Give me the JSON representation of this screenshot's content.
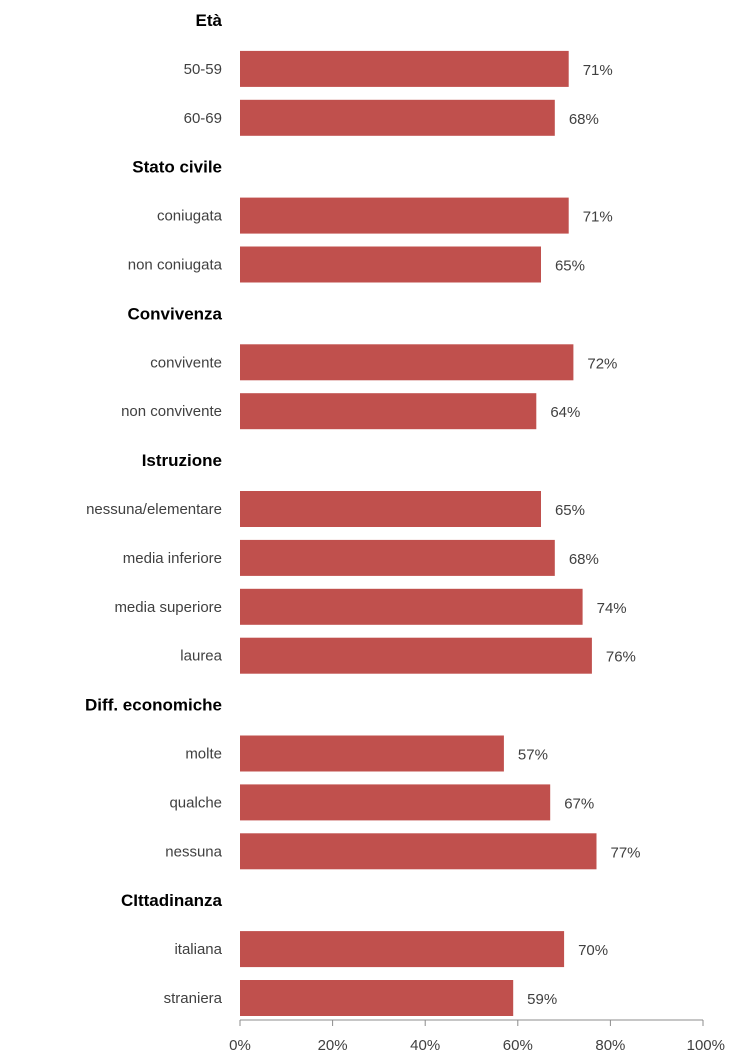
{
  "chart_data": {
    "type": "bar",
    "orientation": "horizontal",
    "bar_color": "#c0504d",
    "axis_color": "#8c8c8c",
    "xlim": [
      0,
      100
    ],
    "x_ticks": [
      "0%",
      "20%",
      "40%",
      "60%",
      "80%",
      "100%"
    ],
    "groups": [
      {
        "title": "Età",
        "items": [
          {
            "category": "50-59",
            "value": 71,
            "label": "71%"
          },
          {
            "category": "60-69",
            "value": 68,
            "label": "68%"
          }
        ]
      },
      {
        "title": "Stato civile",
        "items": [
          {
            "category": "coniugata",
            "value": 71,
            "label": "71%"
          },
          {
            "category": "non coniugata",
            "value": 65,
            "label": "65%"
          }
        ]
      },
      {
        "title": "Convivenza",
        "items": [
          {
            "category": "convivente",
            "value": 72,
            "label": "72%"
          },
          {
            "category": "non convivente",
            "value": 64,
            "label": "64%"
          }
        ]
      },
      {
        "title": "Istruzione",
        "items": [
          {
            "category": "nessuna/elementare",
            "value": 65,
            "label": "65%"
          },
          {
            "category": "media inferiore",
            "value": 68,
            "label": "68%"
          },
          {
            "category": "media superiore",
            "value": 74,
            "label": "74%"
          },
          {
            "category": "laurea",
            "value": 76,
            "label": "76%"
          }
        ]
      },
      {
        "title": "Diff. economiche",
        "items": [
          {
            "category": "molte",
            "value": 57,
            "label": "57%"
          },
          {
            "category": "qualche",
            "value": 67,
            "label": "67%"
          },
          {
            "category": "nessuna",
            "value": 77,
            "label": "77%"
          }
        ]
      },
      {
        "title": "CIttadinanza",
        "items": [
          {
            "category": "italiana",
            "value": 70,
            "label": "70%"
          },
          {
            "category": "straniera",
            "value": 59,
            "label": "59%"
          }
        ]
      }
    ]
  }
}
